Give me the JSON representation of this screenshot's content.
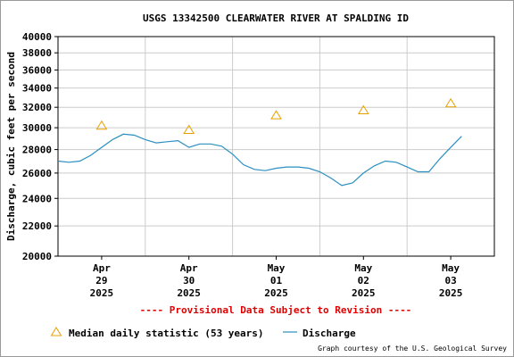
{
  "chart_data": {
    "type": "line",
    "title": "USGS 13342500 CLEARWATER RIVER AT SPALDING ID",
    "y_label": "Discharge, cubic feet per second",
    "note": "---- Provisional Data Subject to Revision ----",
    "credit": "Graph courtesy of the U.S. Geological Survey",
    "log_y": true,
    "grid": true,
    "ylim": [
      20000,
      40000
    ],
    "yticks": [
      20000,
      22000,
      24000,
      26000,
      28000,
      30000,
      32000,
      34000,
      36000,
      38000,
      40000
    ],
    "xlim": [
      "2025-04-29T00:00",
      "2025-05-04T00:00"
    ],
    "xticks": [
      {
        "value": "2025-04-29T12:00",
        "label": [
          "Apr",
          "29",
          "2025"
        ]
      },
      {
        "value": "2025-04-30T12:00",
        "label": [
          "Apr",
          "30",
          "2025"
        ]
      },
      {
        "value": "2025-05-01T12:00",
        "label": [
          "May",
          "01",
          "2025"
        ]
      },
      {
        "value": "2025-05-02T12:00",
        "label": [
          "May",
          "02",
          "2025"
        ]
      },
      {
        "value": "2025-05-03T12:00",
        "label": [
          "May",
          "03",
          "2025"
        ]
      }
    ],
    "series": [
      {
        "name": "Median daily statistic (53 years)",
        "color": "#e8a000",
        "marker": "triangle",
        "x": [
          "2025-04-29T12:00",
          "2025-04-30T12:00",
          "2025-05-01T12:00",
          "2025-05-02T12:00",
          "2025-05-03T12:00"
        ],
        "values": [
          30200,
          29800,
          31200,
          31700,
          32400
        ]
      },
      {
        "name": "Discharge",
        "color": "#2a8fc0",
        "marker": "line",
        "x": [
          "2025-04-29T00:00",
          "2025-04-29T03:00",
          "2025-04-29T06:00",
          "2025-04-29T09:00",
          "2025-04-29T12:00",
          "2025-04-29T15:00",
          "2025-04-29T18:00",
          "2025-04-29T21:00",
          "2025-04-30T00:00",
          "2025-04-30T03:00",
          "2025-04-30T06:00",
          "2025-04-30T09:00",
          "2025-04-30T12:00",
          "2025-04-30T15:00",
          "2025-04-30T18:00",
          "2025-04-30T21:00",
          "2025-05-01T00:00",
          "2025-05-01T03:00",
          "2025-05-01T06:00",
          "2025-05-01T09:00",
          "2025-05-01T12:00",
          "2025-05-01T15:00",
          "2025-05-01T18:00",
          "2025-05-01T21:00",
          "2025-05-02T00:00",
          "2025-05-02T03:00",
          "2025-05-02T06:00",
          "2025-05-02T09:00",
          "2025-05-02T12:00",
          "2025-05-02T15:00",
          "2025-05-02T18:00",
          "2025-05-02T21:00",
          "2025-05-03T00:00",
          "2025-05-03T03:00",
          "2025-05-03T06:00",
          "2025-05-03T09:00",
          "2025-05-03T12:00",
          "2025-05-03T15:00"
        ],
        "values": [
          27000,
          26900,
          27000,
          27500,
          28200,
          28900,
          29400,
          29300,
          28900,
          28600,
          28700,
          28800,
          28200,
          28500,
          28500,
          28300,
          27600,
          26700,
          26300,
          26200,
          26400,
          26500,
          26500,
          26400,
          26100,
          25600,
          25000,
          25200,
          26000,
          26600,
          27000,
          26900,
          26500,
          26100,
          26100,
          27200,
          28200,
          29200
        ]
      }
    ]
  }
}
